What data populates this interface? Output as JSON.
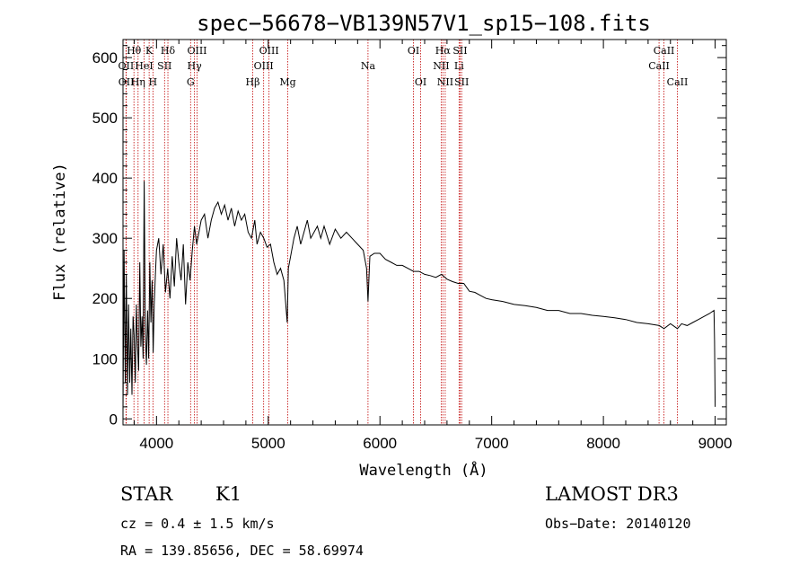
{
  "chart_data": {
    "type": "line",
    "title": "spec−56678−VB139N57V1_sp15−108.fits",
    "xlabel": "Wavelength (Å)",
    "ylabel": "Flux (relative)",
    "xlim": [
      3700,
      9100
    ],
    "ylim": [
      -10,
      630
    ],
    "xticks": [
      4000,
      5000,
      6000,
      7000,
      8000,
      9000
    ],
    "yticks": [
      0,
      100,
      200,
      300,
      400,
      500,
      600
    ],
    "spectrum": {
      "x": [
        3700,
        3710,
        3720,
        3730,
        3740,
        3750,
        3760,
        3770,
        3780,
        3790,
        3800,
        3810,
        3820,
        3830,
        3840,
        3850,
        3860,
        3870,
        3880,
        3890,
        3900,
        3910,
        3920,
        3930,
        3940,
        3950,
        3960,
        3970,
        3980,
        3990,
        4000,
        4020,
        4040,
        4060,
        4080,
        4100,
        4120,
        4140,
        4160,
        4180,
        4200,
        4220,
        4240,
        4260,
        4280,
        4300,
        4320,
        4340,
        4360,
        4380,
        4400,
        4430,
        4460,
        4490,
        4520,
        4550,
        4580,
        4610,
        4640,
        4670,
        4700,
        4730,
        4760,
        4790,
        4820,
        4850,
        4880,
        4900,
        4930,
        4960,
        4990,
        5020,
        5050,
        5080,
        5110,
        5140,
        5170,
        5180,
        5200,
        5230,
        5260,
        5290,
        5320,
        5350,
        5380,
        5410,
        5440,
        5470,
        5500,
        5550,
        5600,
        5650,
        5700,
        5750,
        5800,
        5850,
        5880,
        5893,
        5910,
        5950,
        6000,
        6050,
        6100,
        6150,
        6200,
        6250,
        6300,
        6350,
        6400,
        6450,
        6500,
        6550,
        6600,
        6650,
        6700,
        6750,
        6800,
        6850,
        6900,
        6950,
        7000,
        7100,
        7200,
        7300,
        7400,
        7500,
        7600,
        7700,
        7800,
        7900,
        8000,
        8100,
        8200,
        8300,
        8400,
        8500,
        8542,
        8600,
        8662,
        8700,
        8750,
        8800,
        8850,
        8900,
        8950,
        8990,
        8995,
        9000
      ],
      "y": [
        10,
        280,
        60,
        240,
        40,
        190,
        60,
        150,
        40,
        170,
        140,
        60,
        190,
        120,
        80,
        260,
        120,
        170,
        100,
        395,
        140,
        90,
        180,
        100,
        260,
        160,
        230,
        110,
        190,
        240,
        280,
        300,
        240,
        290,
        210,
        250,
        200,
        270,
        220,
        300,
        260,
        230,
        290,
        190,
        260,
        230,
        280,
        320,
        290,
        310,
        330,
        340,
        300,
        330,
        350,
        360,
        340,
        355,
        330,
        350,
        320,
        345,
        330,
        340,
        310,
        300,
        330,
        290,
        310,
        300,
        285,
        290,
        260,
        240,
        250,
        230,
        160,
        250,
        270,
        300,
        320,
        290,
        310,
        330,
        300,
        310,
        320,
        300,
        320,
        290,
        315,
        300,
        310,
        300,
        290,
        280,
        250,
        195,
        270,
        275,
        275,
        265,
        260,
        255,
        255,
        250,
        245,
        245,
        240,
        238,
        235,
        240,
        232,
        228,
        225,
        225,
        212,
        210,
        205,
        200,
        198,
        195,
        190,
        188,
        185,
        180,
        180,
        175,
        175,
        172,
        170,
        168,
        165,
        160,
        158,
        155,
        150,
        158,
        150,
        158,
        155,
        160,
        165,
        170,
        175,
        180,
        130,
        20
      ]
    },
    "spectral_lines": [
      {
        "name": "Hθ",
        "wavelength": 3798,
        "row": 1
      },
      {
        "name": "OII",
        "wavelength": 3727,
        "row": 2
      },
      {
        "name": "OII",
        "wavelength": 3729,
        "row": 3
      },
      {
        "name": "Hη",
        "wavelength": 3835,
        "row": 3
      },
      {
        "name": "HeI",
        "wavelength": 3889,
        "row": 2
      },
      {
        "name": "K",
        "wavelength": 3934,
        "row": 1
      },
      {
        "name": "H",
        "wavelength": 3968,
        "row": 3
      },
      {
        "name": "SII",
        "wavelength": 4072,
        "row": 2
      },
      {
        "name": "Hδ",
        "wavelength": 4102,
        "row": 1
      },
      {
        "name": "OIII",
        "wavelength": 4363,
        "row": 1
      },
      {
        "name": "Hγ",
        "wavelength": 4340,
        "row": 2
      },
      {
        "name": "G",
        "wavelength": 4305,
        "row": 3
      },
      {
        "name": "Hβ",
        "wavelength": 4861,
        "row": 3
      },
      {
        "name": "OIII",
        "wavelength": 5007,
        "row": 1
      },
      {
        "name": "OIII",
        "wavelength": 4959,
        "row": 2
      },
      {
        "name": "Mg",
        "wavelength": 5175,
        "row": 3
      },
      {
        "name": "Na",
        "wavelength": 5893,
        "row": 2
      },
      {
        "name": "OI",
        "wavelength": 6300,
        "row": 1
      },
      {
        "name": "OI",
        "wavelength": 6364,
        "row": 3
      },
      {
        "name": "Hα",
        "wavelength": 6563,
        "row": 1
      },
      {
        "name": "NII",
        "wavelength": 6548,
        "row": 2
      },
      {
        "name": "NII",
        "wavelength": 6584,
        "row": 3
      },
      {
        "name": "SII",
        "wavelength": 6717,
        "row": 1
      },
      {
        "name": "Li",
        "wavelength": 6708,
        "row": 2
      },
      {
        "name": "SII",
        "wavelength": 6731,
        "row": 3
      },
      {
        "name": "CaII",
        "wavelength": 8542,
        "row": 1
      },
      {
        "name": "CaII",
        "wavelength": 8498,
        "row": 2
      },
      {
        "name": "CaII",
        "wavelength": 8662,
        "row": 3
      }
    ]
  },
  "info": {
    "class": "STAR",
    "subclass": "K1",
    "survey": "LAMOST DR3",
    "cz": "cz = 0.4 ± 1.5 km/s",
    "obs_date": "Obs−Date: 20140120",
    "coords": "RA = 139.85656, DEC =  58.69974"
  },
  "colors": {
    "spectrum": "#000000",
    "line_markers": "#c00000",
    "axes": "#000000"
  }
}
